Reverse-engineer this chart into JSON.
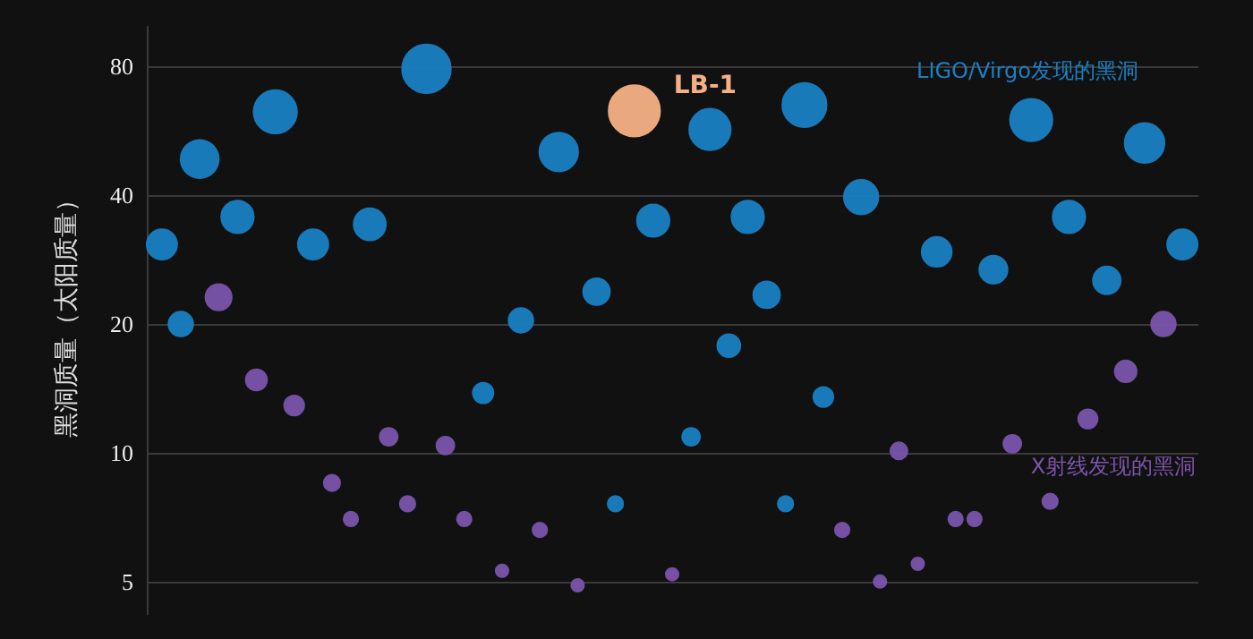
{
  "chart_data": {
    "type": "bubble",
    "ylabel": "黑洞质量（太阳质量）",
    "log": true,
    "ylim": [
      4.2,
      100
    ],
    "yticks": [
      5,
      10,
      20,
      40,
      80
    ],
    "grid": "y",
    "tick_labels": "y",
    "legend": false,
    "categories": [
      null,
      null,
      null,
      null,
      null,
      null,
      null,
      null,
      null,
      null,
      null,
      null,
      null,
      null,
      null,
      null,
      null,
      null,
      null,
      null,
      null,
      null,
      null,
      null,
      null,
      null,
      null,
      null,
      null,
      null,
      null,
      null,
      null,
      null,
      null,
      null,
      null,
      null,
      null,
      null,
      null,
      null,
      null,
      null,
      null,
      null,
      null,
      null,
      null,
      null,
      null,
      null,
      null,
      null,
      null
    ],
    "series": [
      {
        "name": "LIGO/Virgo发现的黑洞",
        "color": "#1a80c4",
        "values": [
          30.7,
          20,
          48.6,
          null,
          35.6,
          null,
          62.7,
          null,
          30.7,
          null,
          null,
          34.2,
          null,
          null,
          79,
          null,
          null,
          13.8,
          null,
          20.4,
          null,
          50.5,
          null,
          23.8,
          7.6,
          null,
          34.9,
          null,
          10.9,
          57,
          17.8,
          35.6,
          23.4,
          7.6,
          65,
          13.5,
          null,
          39.6,
          null,
          null,
          null,
          29.5,
          null,
          null,
          26.8,
          null,
          60,
          null,
          35.6,
          null,
          25.3,
          null,
          53,
          null,
          30.7
        ],
        "sizes": [
          0.35,
          0.23,
          0.55,
          null,
          0.4,
          null,
          0.71,
          null,
          0.35,
          null,
          null,
          0.39,
          null,
          null,
          0.9,
          null,
          null,
          0.16,
          null,
          0.23,
          null,
          0.57,
          null,
          0.27,
          0.09,
          null,
          0.4,
          null,
          0.12,
          0.65,
          0.2,
          0.4,
          0.27,
          0.09,
          0.74,
          0.15,
          null,
          0.45,
          null,
          null,
          null,
          0.34,
          null,
          null,
          0.3,
          null,
          0.68,
          null,
          0.4,
          null,
          0.29,
          null,
          0.6,
          null,
          0.35
        ]
      },
      {
        "name": "X射线发现的黑洞",
        "color": "#7a55ab",
        "values": [
          null,
          null,
          null,
          23.1,
          null,
          14.8,
          null,
          12.9,
          null,
          8.5,
          7.0,
          null,
          10.9,
          7.6,
          null,
          10.4,
          7.0,
          null,
          5.3,
          null,
          6.6,
          null,
          4.9,
          null,
          null,
          null,
          null,
          5.2,
          null,
          null,
          null,
          null,
          null,
          null,
          null,
          null,
          6.6,
          null,
          5.0,
          10.1,
          5.5,
          null,
          7.0,
          7.0,
          null,
          10.5,
          null,
          7.7,
          null,
          12.0,
          null,
          15.5,
          null,
          20,
          null
        ],
        "sizes": [
          null,
          null,
          null,
          0.26,
          null,
          0.17,
          null,
          0.15,
          null,
          0.1,
          0.08,
          null,
          0.12,
          0.09,
          null,
          0.12,
          0.08,
          null,
          0.06,
          null,
          0.08,
          null,
          0.06,
          null,
          null,
          null,
          null,
          0.06,
          null,
          null,
          null,
          null,
          null,
          null,
          null,
          null,
          0.08,
          null,
          0.06,
          0.11,
          0.06,
          null,
          0.08,
          0.08,
          null,
          0.12,
          null,
          0.09,
          null,
          0.14,
          null,
          0.18,
          null,
          0.23,
          null
        ]
      },
      {
        "name": "LB-1",
        "color": "#f5b184",
        "values": [
          null,
          null,
          null,
          null,
          null,
          null,
          null,
          null,
          null,
          null,
          null,
          null,
          null,
          null,
          null,
          null,
          null,
          null,
          null,
          null,
          null,
          null,
          null,
          null,
          null,
          63,
          null,
          null,
          null,
          null,
          null,
          null,
          null,
          null,
          null,
          null,
          null,
          null,
          null,
          null,
          null,
          null,
          null,
          null,
          null,
          null,
          null,
          null,
          null,
          null,
          null,
          null,
          null,
          null,
          null
        ],
        "sizes": [
          null,
          null,
          null,
          null,
          null,
          null,
          null,
          null,
          null,
          null,
          null,
          null,
          null,
          null,
          null,
          null,
          null,
          null,
          null,
          null,
          null,
          null,
          null,
          null,
          null,
          1,
          null,
          null,
          null,
          null,
          null,
          null,
          null,
          null,
          null,
          null,
          null,
          null,
          null,
          null,
          null,
          null,
          null,
          null,
          null,
          null,
          null,
          null,
          null,
          null,
          null,
          null,
          null,
          null,
          null
        ]
      }
    ]
  }
}
